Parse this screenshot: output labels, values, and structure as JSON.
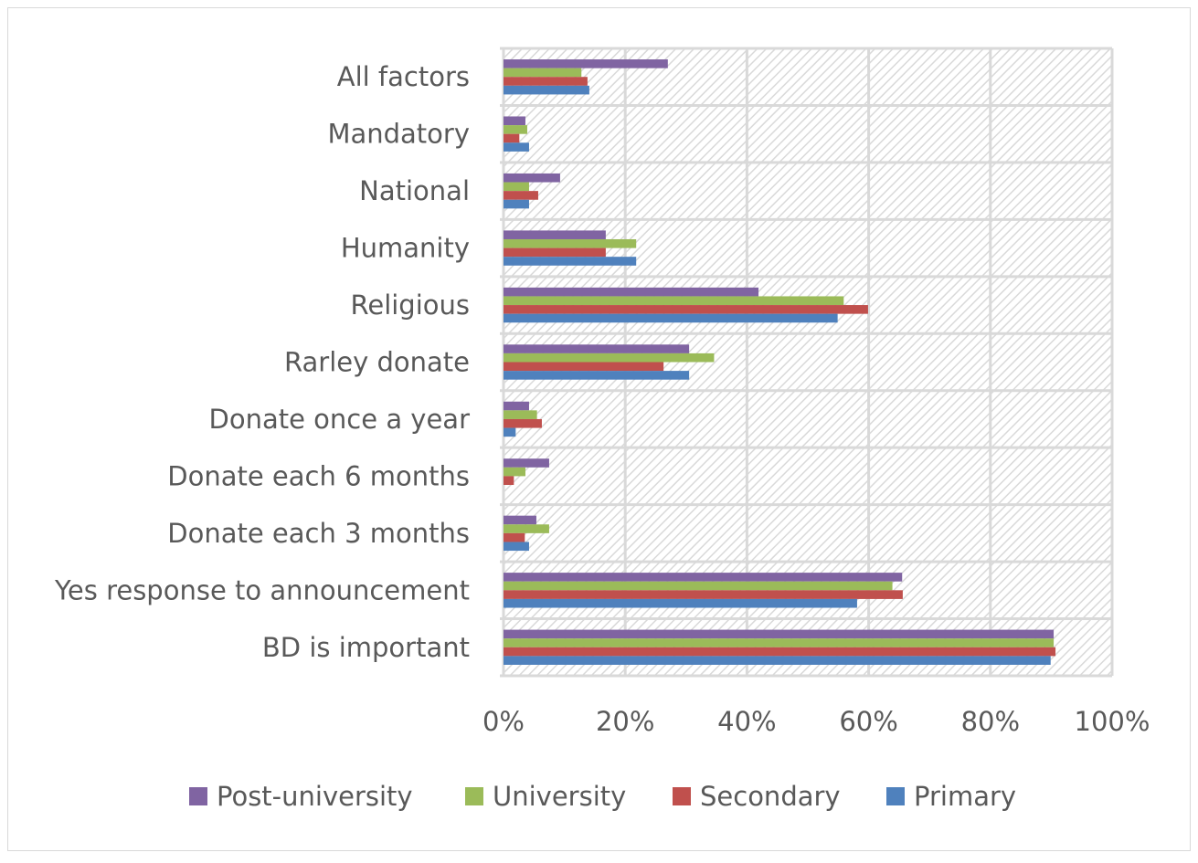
{
  "chart_data": {
    "type": "bar",
    "orientation": "horizontal",
    "title": "",
    "xlabel": "",
    "ylabel": "",
    "xlim": [
      0,
      100
    ],
    "x_ticks": [
      "0%",
      "20%",
      "40%",
      "60%",
      "80%",
      "100%"
    ],
    "grid": true,
    "legend_position": "bottom",
    "categories": [
      "All factors",
      "Mandatory",
      "National",
      "Humanity",
      "Religious",
      "Rarley donate",
      "Donate once a year",
      "Donate each 6 months",
      "Donate each 3 months",
      "Yes response to announcement",
      "BD is important"
    ],
    "series": [
      {
        "name": "Post-university",
        "color": "#8064a2",
        "values": [
          27,
          3.6,
          9.3,
          16.8,
          41.9,
          30.5,
          4.2,
          7.5,
          5.4,
          65.5,
          90.4
        ]
      },
      {
        "name": "University",
        "color": "#9bbb59",
        "values": [
          12.8,
          3.9,
          4.2,
          21.8,
          55.9,
          34.6,
          5.5,
          3.6,
          7.5,
          63.9,
          90.4
        ]
      },
      {
        "name": "Secondary",
        "color": "#c0504d",
        "values": [
          13.8,
          2.6,
          5.7,
          16.8,
          59.9,
          26.3,
          6.3,
          1.7,
          3.5,
          65.6,
          90.7
        ]
      },
      {
        "name": "Primary",
        "color": "#4f81bd",
        "values": [
          14.1,
          4.2,
          4.2,
          21.8,
          54.9,
          30.5,
          2.0,
          0,
          4.2,
          58.1,
          89.9
        ]
      }
    ]
  }
}
